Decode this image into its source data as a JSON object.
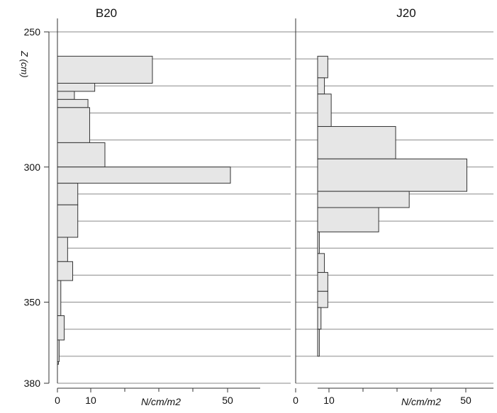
{
  "chart_data": {
    "type": "bar",
    "orientation": "horizontal",
    "ylabel": "Z (cm)",
    "xlabel": "N/cm/m2",
    "ylim": [
      250,
      380
    ],
    "y_ticks": [
      250,
      300,
      350,
      380
    ],
    "x_ticks": [
      0,
      10,
      50
    ],
    "xlim": [
      0,
      60
    ],
    "grid": true,
    "bin_edges": [
      260,
      270,
      280,
      290,
      300,
      310,
      320,
      330,
      340,
      350,
      360,
      370,
      380
    ],
    "panels": [
      {
        "title": "B20",
        "bars": [
          {
            "z_from": 259,
            "z_to": 269,
            "value": 28
          },
          {
            "z_from": 269,
            "z_to": 272,
            "value": 11
          },
          {
            "z_from": 272,
            "z_to": 275,
            "value": 5
          },
          {
            "z_from": 275,
            "z_to": 278,
            "value": 9
          },
          {
            "z_from": 278,
            "z_to": 291,
            "value": 9.5
          },
          {
            "z_from": 291,
            "z_to": 300,
            "value": 14
          },
          {
            "z_from": 300,
            "z_to": 306,
            "value": 51
          },
          {
            "z_from": 306,
            "z_to": 314,
            "value": 6
          },
          {
            "z_from": 314,
            "z_to": 326,
            "value": 6
          },
          {
            "z_from": 326,
            "z_to": 335,
            "value": 3
          },
          {
            "z_from": 335,
            "z_to": 342,
            "value": 4.5
          },
          {
            "z_from": 342,
            "z_to": 355,
            "value": 1
          },
          {
            "z_from": 355,
            "z_to": 364,
            "value": 2
          },
          {
            "z_from": 364,
            "z_to": 372,
            "value": 0.5
          },
          {
            "z_from": 372,
            "z_to": 373,
            "value": 0.3
          }
        ]
      },
      {
        "title": "J20",
        "bars": [
          {
            "z_from": 259,
            "z_to": 267,
            "value": 3
          },
          {
            "z_from": 267,
            "z_to": 273,
            "value": 2
          },
          {
            "z_from": 273,
            "z_to": 285,
            "value": 4
          },
          {
            "z_from": 285,
            "z_to": 297,
            "value": 23
          },
          {
            "z_from": 297,
            "z_to": 309,
            "value": 44
          },
          {
            "z_from": 309,
            "z_to": 315,
            "value": 27
          },
          {
            "z_from": 315,
            "z_to": 324,
            "value": 18
          },
          {
            "z_from": 324,
            "z_to": 332,
            "value": 0.5
          },
          {
            "z_from": 332,
            "z_to": 339,
            "value": 2
          },
          {
            "z_from": 339,
            "z_to": 346,
            "value": 3
          },
          {
            "z_from": 346,
            "z_to": 352,
            "value": 3
          },
          {
            "z_from": 352,
            "z_to": 360,
            "value": 1
          },
          {
            "z_from": 360,
            "z_to": 370,
            "value": 0.5
          }
        ]
      }
    ]
  }
}
